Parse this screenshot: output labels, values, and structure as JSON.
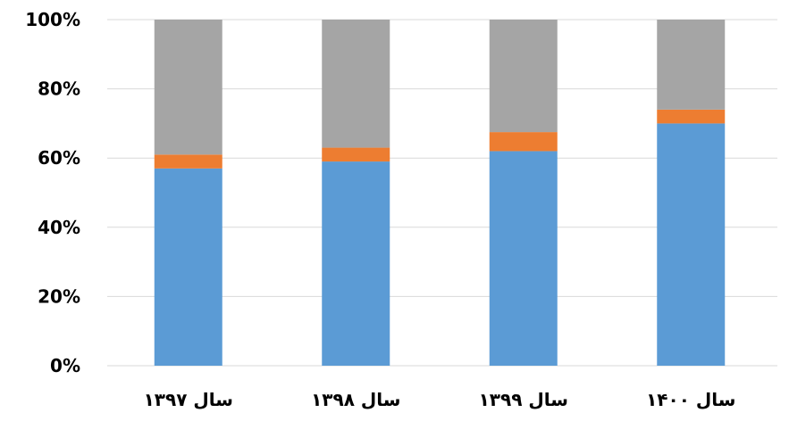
{
  "chart_data": {
    "type": "bar",
    "stacked": true,
    "percent_stacked": true,
    "categories": [
      "سال ۱۳۹۷",
      "سال ۱۳۹۸",
      "سال ۱۳۹۹",
      "سال ۱۴۰۰"
    ],
    "series": [
      {
        "values": [
          57,
          59,
          62,
          70
        ],
        "color": "#5b9bd5"
      },
      {
        "values": [
          4,
          4,
          5.5,
          4
        ],
        "color": "#ed7d31"
      },
      {
        "values": [
          39,
          37,
          32.5,
          26
        ],
        "color": "#a5a5a5"
      }
    ],
    "yticks": [
      "0%",
      "20%",
      "40%",
      "60%",
      "80%",
      "100%"
    ],
    "ylim": [
      0,
      100
    ],
    "grid": true,
    "legend": "none"
  }
}
